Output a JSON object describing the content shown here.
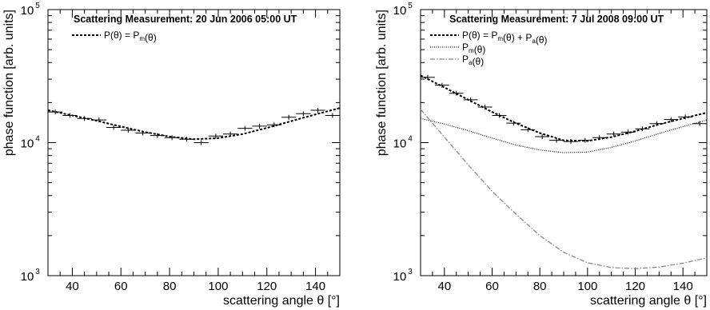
{
  "chart_data": [
    {
      "type": "scatter",
      "title": "Scattering Measurement: 20 Jun 2006 05:00 UT",
      "xlabel": "scattering angle θ [°]",
      "ylabel": "phase function [arb. units]",
      "xlim": [
        30,
        150
      ],
      "ylim": [
        1000,
        100000
      ],
      "yscale": "log",
      "xticks": [
        "40",
        "60",
        "80",
        "100",
        "120",
        "140"
      ],
      "yticks": [
        {
          "base": "10",
          "exp": "3"
        },
        {
          "base": "10",
          "exp": "4"
        },
        {
          "base": "10",
          "exp": "5"
        }
      ],
      "grid": false,
      "legend_position": "top-left",
      "measured": {
        "x": [
          33,
          39,
          45,
          51,
          57,
          63,
          69,
          75,
          81,
          87,
          93,
          99,
          105,
          111,
          117,
          123,
          129,
          135,
          141,
          147
        ],
        "y": [
          17000,
          16000,
          15200,
          14800,
          13000,
          12400,
          11800,
          11300,
          10900,
          10600,
          10000,
          11200,
          11600,
          12800,
          13300,
          13600,
          15500,
          16500,
          17500,
          16000
        ]
      },
      "series": [
        {
          "label": {
            "prefix": "P(θ) = P",
            "sub": "m",
            "suffix": "(θ)"
          },
          "style": "dashed",
          "color": "#000000",
          "x": [
            30,
            40,
            50,
            60,
            70,
            80,
            90,
            100,
            110,
            120,
            130,
            140,
            150
          ],
          "y": [
            17500,
            16000,
            14600,
            13200,
            12000,
            11100,
            10600,
            10800,
            11600,
            12900,
            14500,
            16300,
            18200
          ]
        }
      ]
    },
    {
      "type": "scatter",
      "title": "Scattering Measurement: 7 Jul 2008 09:00 UT",
      "xlabel": "scattering angle θ [°]",
      "ylabel": "phase function [arb. units]",
      "xlim": [
        30,
        150
      ],
      "ylim": [
        1000,
        100000
      ],
      "yscale": "log",
      "xticks": [
        "40",
        "60",
        "80",
        "100",
        "120",
        "140"
      ],
      "yticks": [
        {
          "base": "10",
          "exp": "3"
        },
        {
          "base": "10",
          "exp": "4"
        },
        {
          "base": "10",
          "exp": "5"
        }
      ],
      "grid": false,
      "legend_position": "top-right",
      "measured": {
        "x": [
          33,
          39,
          45,
          51,
          57,
          63,
          69,
          75,
          81,
          87,
          93,
          99,
          105,
          111,
          117,
          123,
          129,
          135,
          141,
          147
        ],
        "y": [
          31000,
          27000,
          23500,
          21000,
          18500,
          16000,
          14000,
          12500,
          11100,
          10400,
          10200,
          10400,
          10900,
          11600,
          12000,
          12700,
          13900,
          14900,
          15600,
          13900
        ]
      },
      "series": [
        {
          "label": {
            "prefix": "P(θ) = P",
            "sub": "m",
            "suffix": "(θ) + P",
            "sub2": "a",
            "suffix2": "(θ)"
          },
          "style": "dashed",
          "color": "#000000",
          "x": [
            30,
            40,
            50,
            60,
            70,
            80,
            90,
            100,
            110,
            120,
            130,
            140,
            150
          ],
          "y": [
            32000,
            26000,
            21000,
            17000,
            14000,
            11800,
            10400,
            10300,
            11000,
            12200,
            13700,
            15200,
            16800
          ]
        },
        {
          "label": {
            "prefix": "P",
            "sub": "m",
            "suffix": "(θ)"
          },
          "style": "dotted",
          "color": "#222222",
          "x": [
            30,
            40,
            50,
            60,
            70,
            80,
            90,
            100,
            110,
            120,
            130,
            140,
            150
          ],
          "y": [
            15200,
            13800,
            12300,
            10800,
            9600,
            8800,
            8400,
            8500,
            9200,
            10300,
            11700,
            13200,
            14800
          ]
        },
        {
          "label": {
            "prefix": "P",
            "sub": "a",
            "suffix": "(θ)"
          },
          "style": "dashdot",
          "color": "#888888",
          "x": [
            30,
            40,
            50,
            60,
            70,
            80,
            90,
            100,
            110,
            120,
            130,
            140,
            150
          ],
          "y": [
            17800,
            11000,
            6800,
            4300,
            2900,
            2000,
            1500,
            1250,
            1150,
            1130,
            1160,
            1240,
            1360
          ]
        }
      ]
    }
  ]
}
